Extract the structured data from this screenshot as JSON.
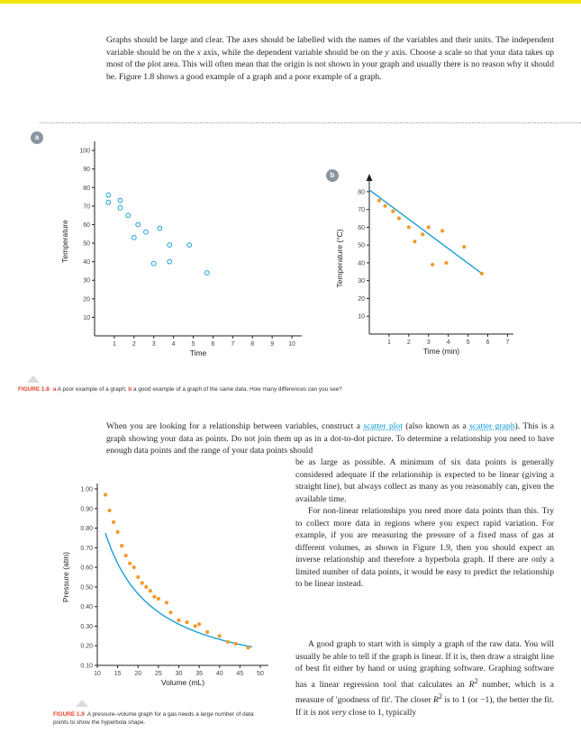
{
  "intro": {
    "p1": "Graphs should be large and clear. The axes should be labelled with the names of the variables and their units. The independent variable should be on the ",
    "p1_x": "x",
    "p1_b": " axis, while the dependent variable should be on the ",
    "p1_y": "y",
    "p1_c": " axis. Choose a scale so that your data takes up most of the plot area. This will often mean that the origin is not shown in your graph and usually there is no reason why it should be. Figure 1.8 shows a good example of a graph and a poor example of a graph."
  },
  "figure18": {
    "badge_a": "a",
    "badge_b": "b",
    "caption_label": "FIGURE 1.8",
    "caption_a": "a",
    "caption_t1": " A poor example of a graph; ",
    "caption_b": "b",
    "caption_t2": " a good example of a graph of the same data. How many differences can you see?"
  },
  "chart_data": [
    {
      "type": "scatter",
      "title": "",
      "xlabel": "Time",
      "ylabel": "Temperature",
      "xlim": [
        0,
        10.5
      ],
      "ylim": [
        0,
        102
      ],
      "xticks": [
        1,
        2,
        3,
        4,
        5,
        6,
        7,
        8,
        9,
        10
      ],
      "yticks": [
        10,
        20,
        30,
        40,
        50,
        60,
        70,
        80,
        90,
        100
      ],
      "marker": "hollow-circle",
      "color": "#1aa0d8",
      "grid": false,
      "x": [
        0.7,
        0.7,
        1.3,
        1.3,
        1.7,
        2.0,
        2.2,
        2.6,
        3.0,
        3.3,
        3.8,
        3.8,
        4.8,
        5.7
      ],
      "y": [
        76,
        72,
        73,
        69,
        65,
        53,
        60,
        56,
        39,
        58,
        49,
        40,
        49,
        34
      ]
    },
    {
      "type": "scatter",
      "title": "",
      "xlabel": "Time (min)",
      "ylabel": "Temperature (°C)",
      "xlim": [
        0,
        7.3
      ],
      "ylim": [
        0,
        85
      ],
      "xticks": [
        1,
        2,
        3,
        4,
        5,
        6,
        7
      ],
      "yticks": [
        10,
        20,
        30,
        40,
        50,
        60,
        70,
        80
      ],
      "marker": "filled-circle",
      "color": "#f39a2a",
      "line_color": "#1aa0d8",
      "grid": false,
      "x": [
        0.5,
        0.8,
        1.2,
        1.5,
        2.0,
        2.3,
        2.7,
        3.0,
        3.2,
        3.7,
        3.9,
        4.8,
        5.7
      ],
      "y": [
        75,
        72,
        69,
        65,
        60,
        52,
        56,
        60,
        39,
        58,
        40,
        49,
        34
      ],
      "best_fit": {
        "x": [
          0.0,
          5.7
        ],
        "y": [
          81,
          34
        ]
      }
    },
    {
      "type": "scatter",
      "title": "",
      "xlabel": "Volume (mL)",
      "ylabel": "Pressure (atm)",
      "xlim": [
        10,
        52
      ],
      "ylim": [
        0.1,
        1.0
      ],
      "xticks": [
        10,
        15,
        20,
        25,
        30,
        35,
        40,
        45,
        50
      ],
      "yticks": [
        0.1,
        0.2,
        0.3,
        0.4,
        0.5,
        0.6,
        0.7,
        0.8,
        0.9,
        1.0
      ],
      "ytick_labels": [
        "0.10",
        "0.20",
        "0.30",
        "0.40",
        "0.50",
        "0.60",
        "0.70",
        "0.80",
        "0.90",
        "1.00"
      ],
      "marker": "filled-circle",
      "color": "#f39a2a",
      "line_color": "#1aa0d8",
      "grid": false,
      "x": [
        12,
        13,
        14,
        15,
        16,
        17,
        18,
        19,
        20,
        21,
        22,
        23,
        24,
        25,
        27,
        28,
        30,
        32,
        34,
        35,
        37,
        40,
        42,
        44,
        47
      ],
      "y": [
        0.97,
        0.89,
        0.83,
        0.78,
        0.71,
        0.66,
        0.62,
        0.6,
        0.55,
        0.52,
        0.5,
        0.48,
        0.45,
        0.44,
        0.42,
        0.37,
        0.33,
        0.32,
        0.3,
        0.31,
        0.27,
        0.25,
        0.22,
        0.21,
        0.19
      ],
      "best_fit": {
        "type": "hyperbola",
        "k": 9.3,
        "x_from": 12,
        "x_to": 48
      }
    }
  ],
  "body": {
    "p2_a": "When you are looking for a relationship between variables, construct a ",
    "p2_link": "scatter plot",
    "p2_b": " (also known as a ",
    "p2_c": "scatter graph",
    "p2_d": "). This is a graph showing your data as points. Do not join them up as in a dot-to-dot picture. To determine a relationship you need to have enough data points and the range of your data points should",
    "r1": "be as large as possible. A minimum of six data points is generally considered adequate if the relationship is expected to be linear (giving a straight line), but always collect as many as you reasonably can, given the available time.",
    "r2": "For non-linear relationships you need more data points than this. Try to collect more data in regions where you expect rapid variation. For example, if you are measuring the pressure of a fixed mass of gas at different volumes, as shown in Figure 1.9, then you should expect an inverse relationship and therefore a hyperbola graph. If there are only a limited number of data points, it would be easy to predict the relationship to be linear instead.",
    "r3_a": "A good graph to start with is simply a graph of the raw data. You will usually be able to tell if the graph is linear. If it is, then draw a straight line of best fit either by hand or using graphing software. Graphing software has a linear regression tool that calculates an ",
    "r3_r": "R",
    "r3_sup": "2",
    "r3_b": " number, which is a measure of 'goodness of fit'. The closer ",
    "r3_c": " is to 1 (or −1), the better the fit. If it is not ",
    "r3_very": "very",
    "r3_d": " close to 1, typically"
  },
  "figure19": {
    "caption_label": "FIGURE 1.9",
    "caption_text": "A pressure–volume graph for a gas needs a large number of data points to show the hyperbola shape."
  }
}
